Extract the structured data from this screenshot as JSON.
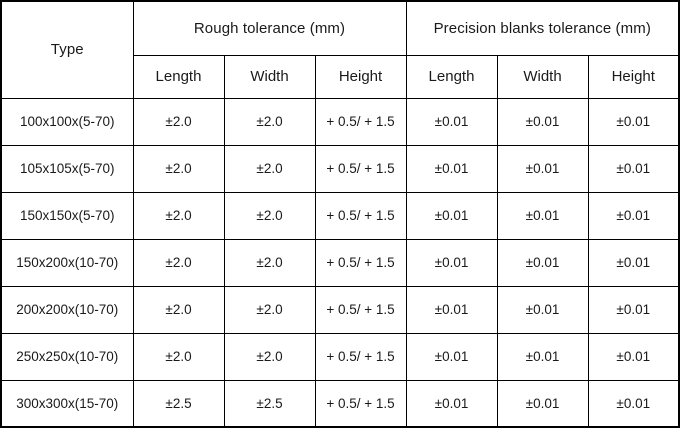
{
  "table": {
    "header": {
      "type_label": "Type",
      "rough_group_label": "Rough tolerance (mm)",
      "precision_group_label": "Precision blanks tolerance (mm)",
      "subheaders": [
        "Length",
        "Width",
        "Height",
        "Length",
        "Width",
        "Height"
      ]
    },
    "rows": [
      {
        "type": "100x100x(5-70)",
        "cells": [
          "±2.0",
          "±2.0",
          "+ 0.5/ + 1.5",
          "±0.01",
          "±0.01",
          "±0.01"
        ]
      },
      {
        "type": "105x105x(5-70)",
        "cells": [
          "±2.0",
          "±2.0",
          "+ 0.5/ + 1.5",
          "±0.01",
          "±0.01",
          "±0.01"
        ]
      },
      {
        "type": "150x150x(5-70)",
        "cells": [
          "±2.0",
          "±2.0",
          "+ 0.5/ + 1.5",
          "±0.01",
          "±0.01",
          "±0.01"
        ]
      },
      {
        "type": "150x200x(10-70)",
        "cells": [
          "±2.0",
          "±2.0",
          "+ 0.5/ + 1.5",
          "±0.01",
          "±0.01",
          "±0.01"
        ]
      },
      {
        "type": "200x200x(10-70)",
        "cells": [
          "±2.0",
          "±2.0",
          "+ 0.5/ + 1.5",
          "±0.01",
          "±0.01",
          "±0.01"
        ]
      },
      {
        "type": "250x250x(10-70)",
        "cells": [
          "±2.0",
          "±2.0",
          "+ 0.5/ + 1.5",
          "±0.01",
          "±0.01",
          "±0.01"
        ]
      },
      {
        "type": "300x300x(15-70)",
        "cells": [
          "±2.5",
          "±2.5",
          "+ 0.5/ + 1.5",
          "±0.01",
          "±0.01",
          "±0.01"
        ]
      }
    ],
    "colors": {
      "border": "#000000",
      "background": "#ffffff",
      "text": "#1a1a1a"
    }
  }
}
